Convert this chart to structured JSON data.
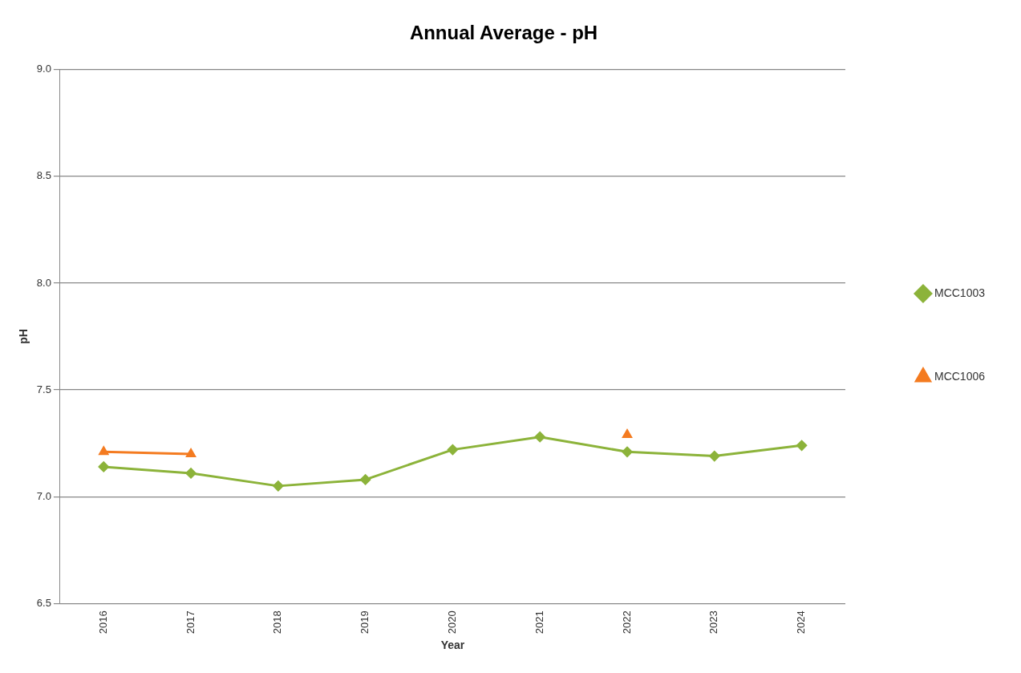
{
  "chart_data": {
    "type": "line",
    "title": "Annual Average - pH",
    "xlabel": "Year",
    "ylabel": "pH",
    "categories": [
      "2016",
      "2017",
      "2018",
      "2019",
      "2020",
      "2021",
      "2022",
      "2023",
      "2024"
    ],
    "series": [
      {
        "name": "MCC1003",
        "color": "#8cb33a",
        "marker": "diamond",
        "values": [
          7.14,
          7.11,
          7.05,
          7.08,
          7.22,
          7.28,
          7.21,
          7.19,
          7.24
        ]
      },
      {
        "name": "MCC1006",
        "color": "#f47b20",
        "marker": "triangle",
        "values": [
          7.21,
          7.2,
          null,
          null,
          null,
          null,
          7.29,
          null,
          null
        ]
      }
    ],
    "ylim": [
      6.5,
      9.0
    ],
    "yticks": [
      {
        "value": 6.5,
        "label": "6.5"
      },
      {
        "value": 7,
        "label": "7.0"
      },
      {
        "value": 7.5,
        "label": "7.5"
      },
      {
        "value": 8,
        "label": "8.0"
      },
      {
        "value": 8.5,
        "label": "8.5"
      },
      {
        "value": 9,
        "label": "9.0"
      }
    ],
    "grid": "y",
    "legend": "right",
    "line_style": "solid"
  }
}
